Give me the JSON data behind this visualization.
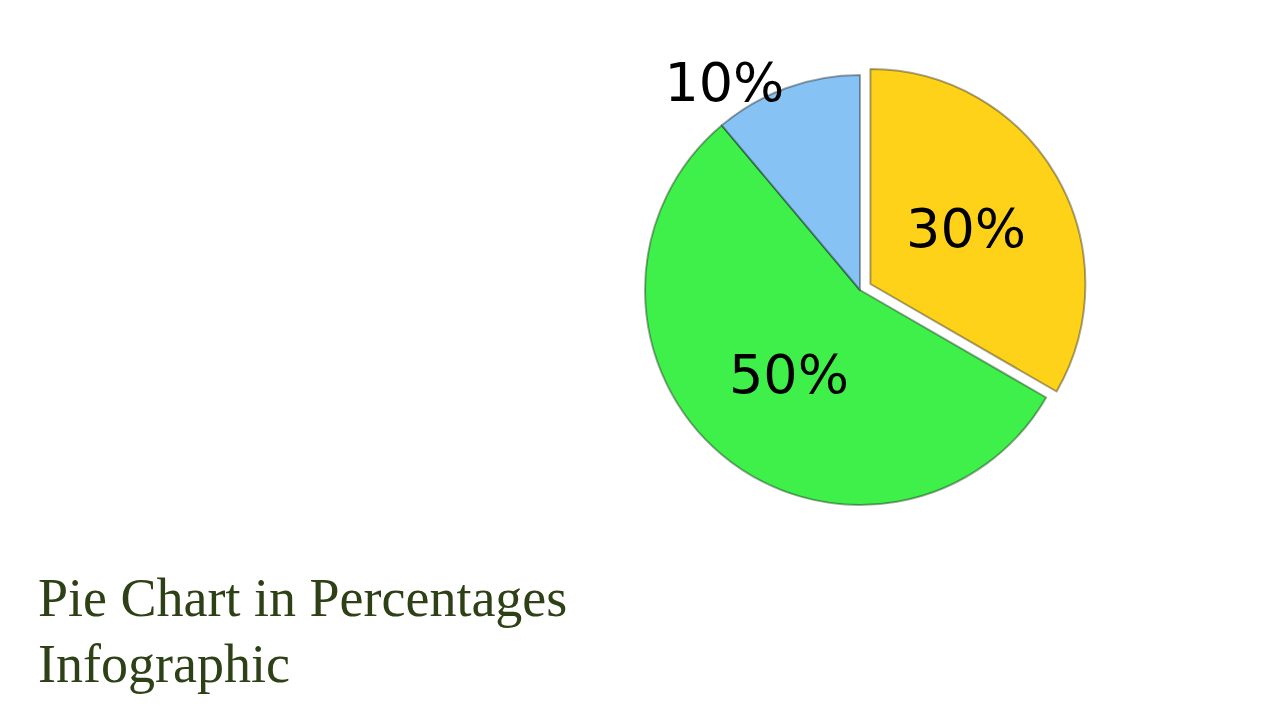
{
  "chart_data": {
    "type": "pie",
    "title": "Pie Chart in Percentages Infographic",
    "categories": [
      null,
      null,
      null
    ],
    "values": [
      30,
      50,
      10
    ],
    "colors": [
      "#ffd21a",
      "#3ff04a",
      "#86c3f4"
    ],
    "value_labels": [
      "30%",
      "50%",
      "10%"
    ]
  }
}
